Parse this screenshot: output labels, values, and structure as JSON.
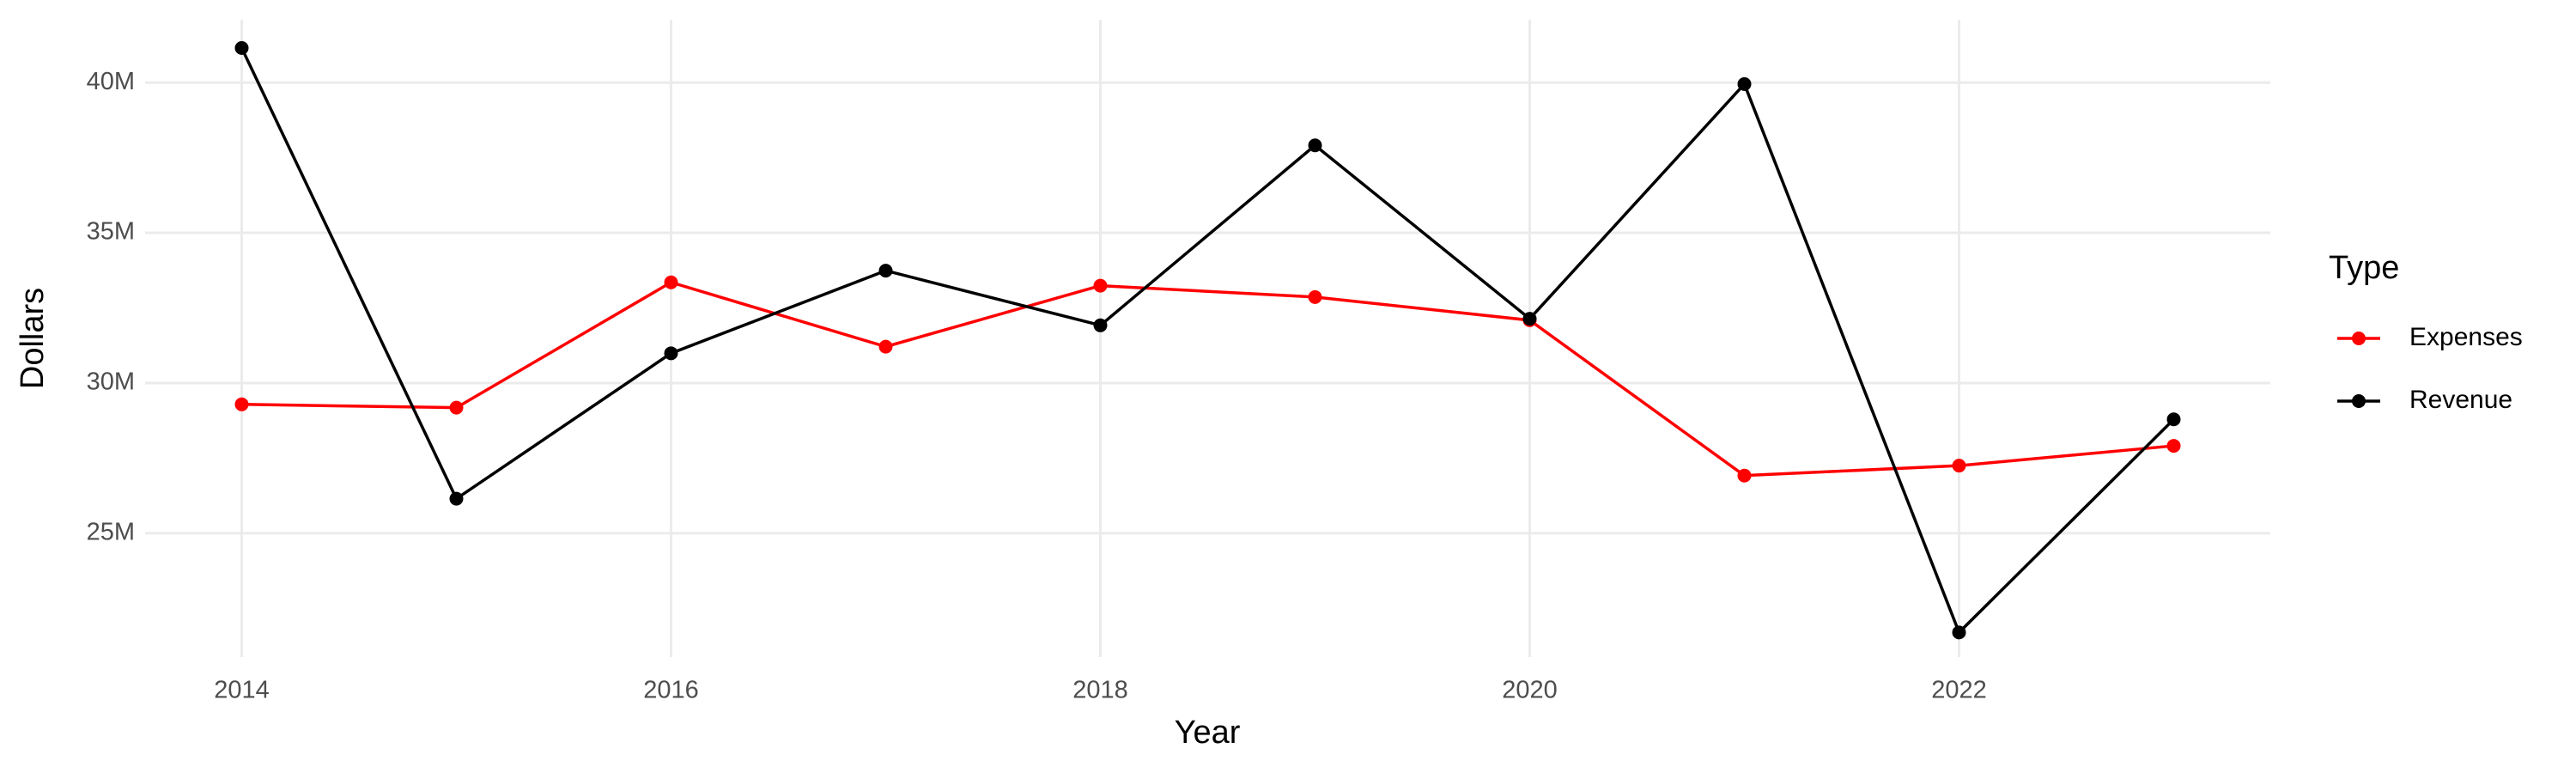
{
  "chart_data": {
    "type": "line",
    "x_label": "Year",
    "y_label": "Dollars",
    "legend_title": "Type",
    "legend_position": "right",
    "grid": true,
    "x": [
      2014,
      2015,
      2016,
      2017,
      2018,
      2019,
      2020,
      2021,
      2022,
      2023
    ],
    "series": [
      {
        "name": "Expenses",
        "color": "#ff0000",
        "values": [
          29290000,
          29180000,
          33350000,
          31210000,
          33240000,
          32860000,
          32090000,
          26920000,
          27250000,
          27910000
        ]
      },
      {
        "name": "Revenue",
        "color": "#000000",
        "values": [
          41150000,
          26150000,
          30990000,
          33740000,
          31920000,
          37910000,
          32140000,
          39950000,
          21700000,
          28790000
        ]
      }
    ],
    "xlim": [
      2013.55,
      2023.45
    ],
    "xticks": [
      2014,
      2016,
      2018,
      2020,
      2022
    ],
    "ylim": [
      20880000,
      42090000
    ],
    "yticks": [
      {
        "value": 25000000,
        "label": "25M"
      },
      {
        "value": 30000000,
        "label": "30M"
      },
      {
        "value": 35000000,
        "label": "35M"
      },
      {
        "value": 40000000,
        "label": "40M"
      }
    ]
  }
}
